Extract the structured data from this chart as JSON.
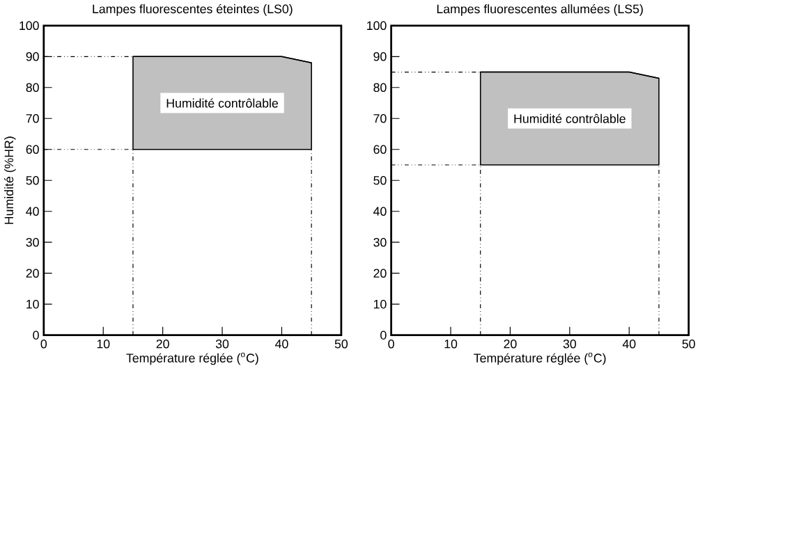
{
  "chart_data": [
    {
      "type": "line",
      "title": "Lampes fluorescentes éteintes (LS0)",
      "xlabel": "Température réglée ($^{o}$C)",
      "ylabel": "Humidité (%HR)",
      "xlim": [
        0,
        50
      ],
      "ylim": [
        0,
        100
      ],
      "xticks": [
        0,
        10,
        20,
        30,
        40,
        50
      ],
      "yticks": [
        0,
        10,
        20,
        30,
        40,
        50,
        60,
        70,
        80,
        90,
        100
      ],
      "series": [
        {
          "color": "#000000",
          "x": [
            15,
            40,
            45
          ],
          "values": [
            90,
            90,
            88
          ],
          "lower": [
            60,
            60,
            60
          ],
          "upper": [
            90,
            90,
            88
          ]
        }
      ],
      "ref_lines": [
        {
          "axis": "y",
          "value": 90,
          "line_style": "dashdotdotted"
        },
        {
          "axis": "y",
          "value": 60,
          "line_style": "dashdotdotted"
        },
        {
          "axis": "x",
          "value": 15,
          "line_style": "dashdotdotted"
        },
        {
          "axis": "x",
          "value": 45,
          "line_style": "dashdotdotted"
        }
      ],
      "annotations": [
        "Humidité contrôlable"
      ]
    },
    {
      "type": "line",
      "title": "Lampes fluorescentes allumées (LS5)",
      "xlabel": "Température réglée ($^{o}$C)",
      "xlim": [
        0,
        50
      ],
      "ylim": [
        0,
        100
      ],
      "xticks": [
        0,
        10,
        20,
        30,
        40,
        50
      ],
      "yticks": [
        0,
        10,
        20,
        30,
        40,
        50,
        60,
        70,
        80,
        90,
        100
      ],
      "series": [
        {
          "color": "#000000",
          "x": [
            15,
            40,
            45
          ],
          "values": [
            85,
            85,
            83
          ],
          "lower": [
            55,
            55,
            55
          ],
          "upper": [
            85,
            85,
            83
          ]
        }
      ],
      "ref_lines": [
        {
          "axis": "y",
          "value": 85,
          "line_style": "dashdotdotted"
        },
        {
          "axis": "y",
          "value": 55,
          "line_style": "dashdotdotted"
        },
        {
          "axis": "x",
          "value": 15,
          "line_style": "dashdotdotted"
        },
        {
          "axis": "x",
          "value": 45,
          "line_style": "dashdotdotted"
        }
      ],
      "annotations": [
        "Humidité contrôlable"
      ]
    }
  ]
}
